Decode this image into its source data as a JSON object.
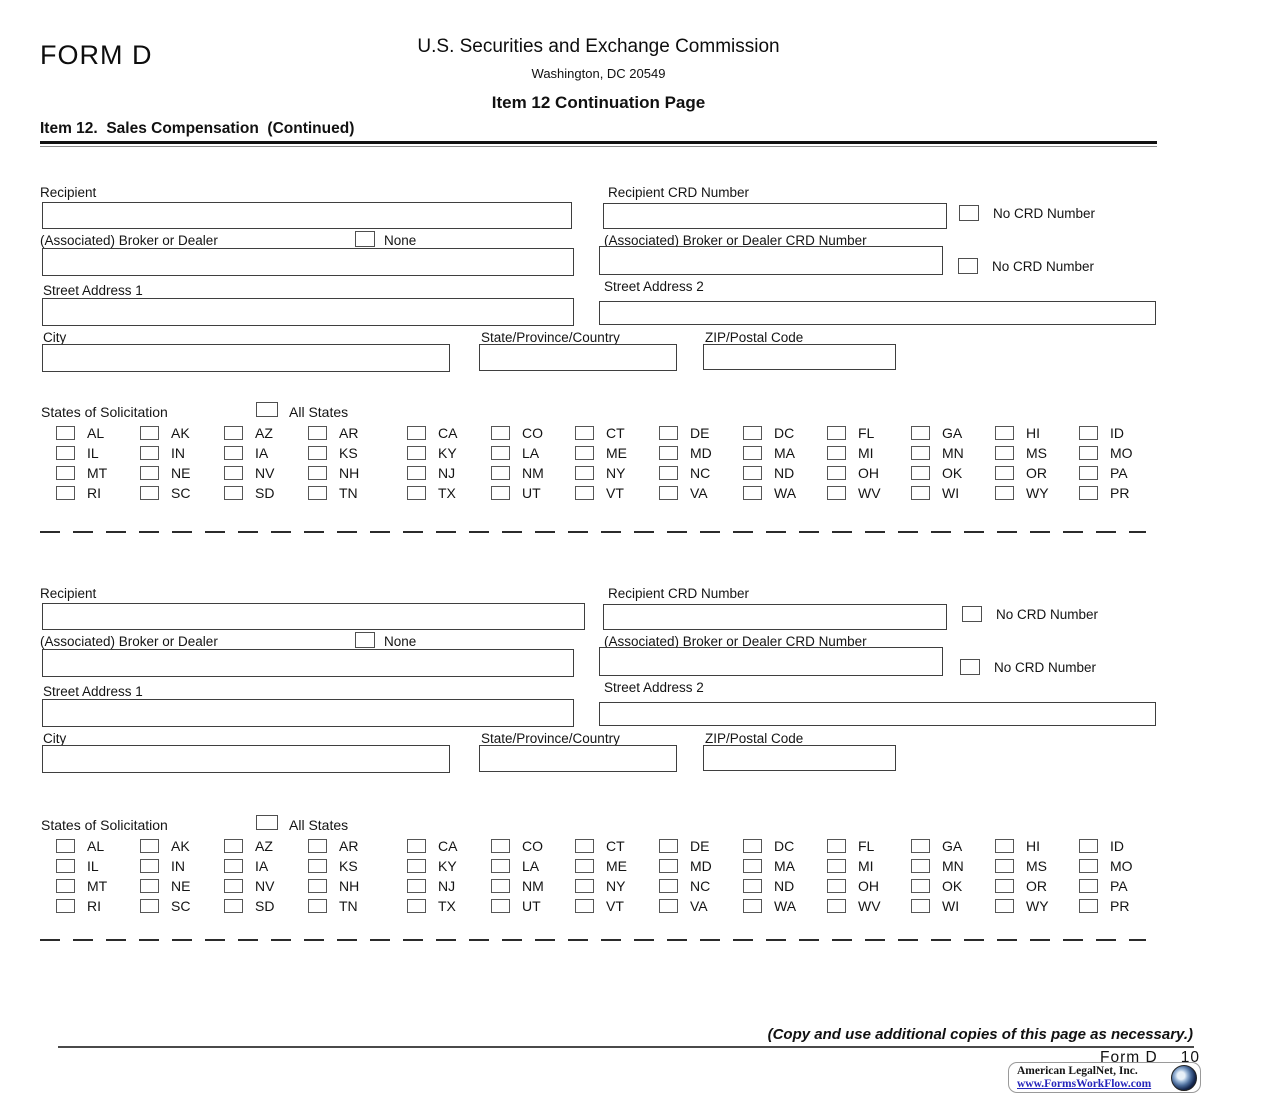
{
  "header": {
    "form_label": "FORM D",
    "agency": "U.S. Securities and Exchange Commission",
    "address": "Washington, DC 20549",
    "page_title": "Item 12 Continuation Page",
    "item_heading": "Item 12.  Sales Compensation  (Continued)"
  },
  "labels": {
    "recipient": "Recipient",
    "recipient_crd": "Recipient CRD Number",
    "no_crd": "No CRD Number",
    "broker": "(Associated) Broker or Dealer",
    "none": "None",
    "broker_crd": "(Associated) Broker or Dealer CRD Number",
    "street1": "Street Address 1",
    "street2": "Street Address 2",
    "city": "City",
    "state": "State/Province/Country",
    "zip": "ZIP/Postal Code",
    "states_of_solicitation": "States of Solicitation",
    "all_states": "All States"
  },
  "states": {
    "rows": [
      [
        "AL",
        "AK",
        "AZ",
        "AR",
        "CA",
        "CO",
        "CT",
        "DE",
        "DC",
        "FL",
        "GA",
        "HI",
        "ID"
      ],
      [
        "IL",
        "IN",
        "IA",
        "KS",
        "KY",
        "LA",
        "ME",
        "MD",
        "MA",
        "MI",
        "MN",
        "MS",
        "MO"
      ],
      [
        "MT",
        "NE",
        "NV",
        "NH",
        "NJ",
        "NM",
        "NY",
        "NC",
        "ND",
        "OH",
        "OK",
        "OR",
        "PA"
      ],
      [
        "RI",
        "SC",
        "SD",
        "TN",
        "TX",
        "UT",
        "VT",
        "VA",
        "WA",
        "WV",
        "WI",
        "WY",
        "PR"
      ]
    ]
  },
  "sections": [
    {
      "recipient": "",
      "recipient_crd": "",
      "no_crd_recipient_checked": false,
      "broker": "",
      "broker_none_checked": false,
      "broker_crd": "",
      "no_crd_broker_checked": false,
      "street1": "",
      "street2": "",
      "city": "",
      "state": "",
      "zip": "",
      "all_states_checked": false,
      "checked_states": []
    },
    {
      "recipient": "",
      "recipient_crd": "",
      "no_crd_recipient_checked": false,
      "broker": "",
      "broker_none_checked": false,
      "broker_crd": "",
      "no_crd_broker_checked": false,
      "street1": "",
      "street2": "",
      "city": "",
      "state": "",
      "zip": "",
      "all_states_checked": false,
      "checked_states": []
    }
  ],
  "footer": {
    "copy_note": "(Copy and use additional copies of this page as necessary.)",
    "form_label": "Form D",
    "page_number": "10",
    "vendor_name": "American LegalNet, Inc.",
    "vendor_url": "www.FormsWorkFlow.com"
  },
  "colors": {
    "text": "#111111",
    "field_border": "#3f3f3f",
    "link": "#2626bb"
  }
}
